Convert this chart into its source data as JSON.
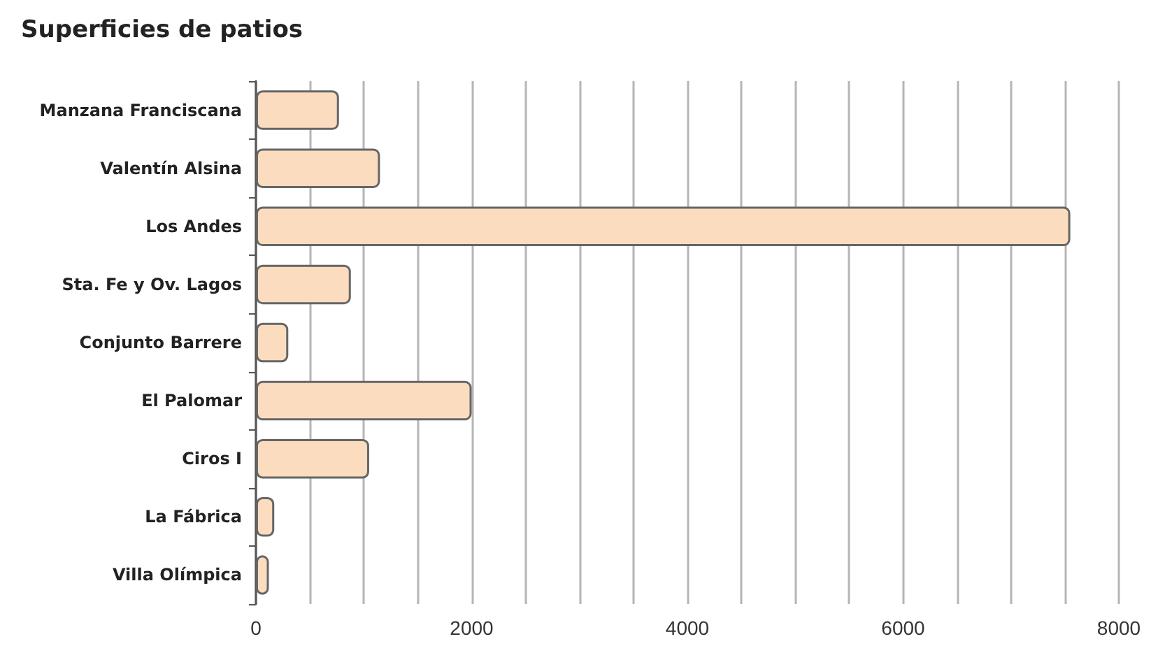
{
  "chart_data": {
    "type": "bar",
    "orientation": "horizontal",
    "title": "Superficies de patios",
    "categories": [
      "Manzana Franciscana",
      "Valentín Alsina",
      "Los Andes",
      "Sta. Fe y Ov. Lagos",
      "Conjunto Barrere",
      "El Palomar",
      "Ciros I",
      "La Fábrica",
      "Villa Olímpica"
    ],
    "values": [
      770,
      1150,
      7550,
      880,
      300,
      2000,
      1050,
      170,
      120
    ],
    "color": "#fbdcbf",
    "xlim": [
      0,
      8000
    ],
    "xticks": [
      0,
      {
        "value": 500,
        "label": null
      },
      {
        "value": 1000,
        "label": null
      },
      {
        "value": 1500,
        "label": null
      },
      2000,
      {
        "value": 2500,
        "label": null
      },
      {
        "value": 3000,
        "label": null
      },
      {
        "value": 3500,
        "label": null
      },
      4000,
      {
        "value": 4500,
        "label": null
      },
      {
        "value": 5000,
        "label": null
      },
      {
        "value": 5500,
        "label": null
      },
      6000,
      {
        "value": 6500,
        "label": null
      },
      {
        "value": 7000,
        "label": null
      },
      {
        "value": 7500,
        "label": null
      },
      8000
    ],
    "grid": "x"
  }
}
